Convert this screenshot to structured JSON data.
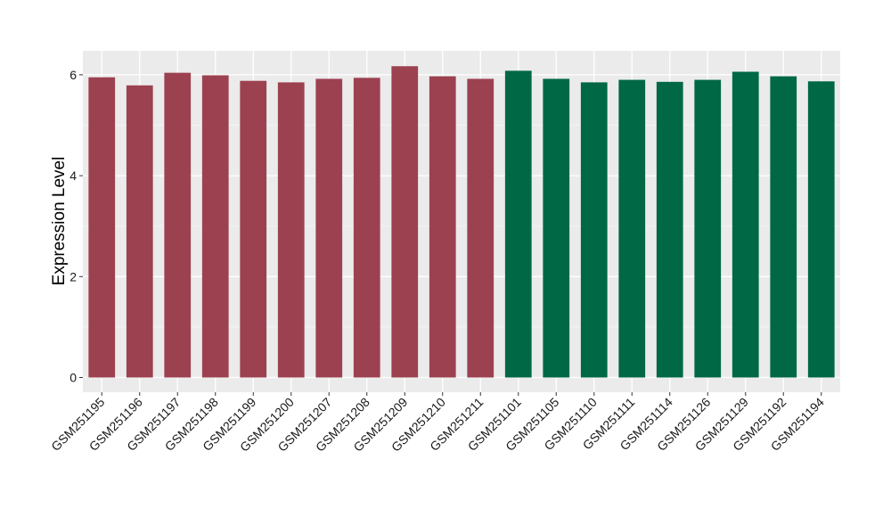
{
  "chart_data": {
    "type": "bar",
    "title": "",
    "xlabel": "",
    "ylabel": "Expression Level",
    "ylim": [
      0,
      6.2
    ],
    "yticks": [
      0,
      2,
      4,
      6
    ],
    "grid": true,
    "panel_background": "#ebebeb",
    "categories": [
      "GSM251195",
      "GSM251196",
      "GSM251197",
      "GSM251198",
      "GSM251199",
      "GSM251200",
      "GSM251207",
      "GSM251208",
      "GSM251209",
      "GSM251210",
      "GSM251211",
      "GSM251101",
      "GSM251105",
      "GSM251110",
      "GSM251111",
      "GSM251114",
      "GSM251126",
      "GSM251129",
      "GSM251192",
      "GSM251194"
    ],
    "values": [
      5.95,
      5.79,
      6.04,
      5.99,
      5.88,
      5.85,
      5.92,
      5.94,
      6.17,
      5.97,
      5.92,
      6.08,
      5.92,
      5.85,
      5.9,
      5.86,
      5.9,
      6.06,
      5.97,
      5.87
    ],
    "groups": [
      {
        "color": "#9c4150",
        "count": 11
      },
      {
        "color": "#006844",
        "count": 9
      }
    ]
  }
}
